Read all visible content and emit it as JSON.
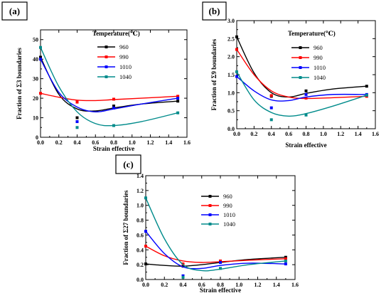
{
  "chart_data": [
    {
      "type": "scatter",
      "panel_label": "(a)",
      "xlabel": "Strain effective",
      "ylabel": "Fraction of Σ3 boundaries",
      "xlim": [
        0.0,
        1.6
      ],
      "ylim": [
        0,
        55
      ],
      "xticks": [
        0.0,
        0.2,
        0.4,
        0.6,
        0.8,
        1.0,
        1.2,
        1.4,
        1.6
      ],
      "yticks": [
        0,
        10,
        20,
        30,
        40,
        50
      ],
      "legend": {
        "title": "Temperature(℃)",
        "position": "top-right"
      },
      "series": [
        {
          "name": "960",
          "color": "#000000",
          "points": [
            [
              0.0,
              41.0
            ],
            [
              0.4,
              10.0
            ],
            [
              0.8,
              16.0
            ],
            [
              1.5,
              18.5
            ]
          ],
          "fit": [
            [
              0.0,
              41.0
            ],
            [
              0.2,
              22.0
            ],
            [
              0.4,
              14.5
            ],
            [
              0.6,
              13.5
            ],
            [
              0.8,
              15.0
            ],
            [
              1.1,
              17.0
            ],
            [
              1.5,
              18.5
            ]
          ]
        },
        {
          "name": "990",
          "color": "#ff0000",
          "points": [
            [
              0.0,
              22.5
            ],
            [
              0.4,
              18.0
            ],
            [
              0.8,
              19.5
            ],
            [
              1.5,
              21.0
            ]
          ],
          "fit": [
            [
              0.0,
              22.5
            ],
            [
              0.2,
              20.5
            ],
            [
              0.4,
              19.0
            ],
            [
              0.6,
              18.8
            ],
            [
              0.8,
              19.3
            ],
            [
              1.1,
              20.0
            ],
            [
              1.5,
              21.0
            ]
          ]
        },
        {
          "name": "1010",
          "color": "#0000ff",
          "points": [
            [
              0.0,
              40.0
            ],
            [
              0.4,
              8.0
            ],
            [
              0.8,
              15.0
            ],
            [
              1.5,
              20.0
            ]
          ],
          "fit": [
            [
              0.0,
              40.0
            ],
            [
              0.2,
              23.0
            ],
            [
              0.4,
              15.5
            ],
            [
              0.6,
              13.0
            ],
            [
              0.8,
              14.5
            ],
            [
              1.1,
              17.0
            ],
            [
              1.5,
              20.0
            ]
          ]
        },
        {
          "name": "1040",
          "color": "#008b8b",
          "points": [
            [
              0.0,
              46.0
            ],
            [
              0.4,
              5.0
            ],
            [
              0.8,
              6.0
            ],
            [
              1.5,
              12.5
            ]
          ],
          "fit": [
            [
              0.0,
              46.0
            ],
            [
              0.2,
              26.0
            ],
            [
              0.4,
              13.0
            ],
            [
              0.6,
              7.0
            ],
            [
              0.8,
              6.0
            ],
            [
              1.1,
              8.0
            ],
            [
              1.5,
              12.5
            ]
          ]
        }
      ]
    },
    {
      "type": "scatter",
      "panel_label": "(b)",
      "xlabel": "Strain effective",
      "ylabel": "Fraction of Σ9 boundaries",
      "xlim": [
        0.0,
        1.6
      ],
      "ylim": [
        0.0,
        3.0
      ],
      "xticks": [
        0.0,
        0.2,
        0.4,
        0.6,
        0.8,
        1.0,
        1.2,
        1.4,
        1.6
      ],
      "yticks": [
        0.0,
        0.5,
        1.0,
        1.5,
        2.0,
        2.5,
        3.0
      ],
      "legend": {
        "title": "Temperature(℃)",
        "position": "top-right"
      },
      "series": [
        {
          "name": "960",
          "color": "#000000",
          "points": [
            [
              0.0,
              2.55
            ],
            [
              0.4,
              0.9
            ],
            [
              0.8,
              1.05
            ],
            [
              1.5,
              1.18
            ]
          ],
          "fit": [
            [
              0.0,
              2.55
            ],
            [
              0.2,
              1.55
            ],
            [
              0.4,
              1.0
            ],
            [
              0.6,
              0.88
            ],
            [
              0.8,
              0.98
            ],
            [
              1.1,
              1.1
            ],
            [
              1.5,
              1.18
            ]
          ]
        },
        {
          "name": "990",
          "color": "#ff0000",
          "points": [
            [
              0.0,
              2.2
            ],
            [
              0.4,
              0.92
            ],
            [
              0.8,
              0.85
            ],
            [
              1.5,
              0.9
            ]
          ],
          "fit": [
            [
              0.0,
              2.2
            ],
            [
              0.2,
              1.5
            ],
            [
              0.4,
              1.05
            ],
            [
              0.6,
              0.88
            ],
            [
              0.8,
              0.84
            ],
            [
              1.1,
              0.86
            ],
            [
              1.5,
              0.9
            ]
          ]
        },
        {
          "name": "1010",
          "color": "#0000ff",
          "points": [
            [
              0.0,
              1.45
            ],
            [
              0.4,
              0.58
            ],
            [
              0.8,
              0.95
            ],
            [
              1.5,
              0.95
            ]
          ],
          "fit": [
            [
              0.0,
              1.45
            ],
            [
              0.2,
              1.05
            ],
            [
              0.4,
              0.8
            ],
            [
              0.6,
              0.78
            ],
            [
              0.8,
              0.88
            ],
            [
              1.1,
              0.95
            ],
            [
              1.5,
              0.95
            ]
          ]
        },
        {
          "name": "1040",
          "color": "#008b8b",
          "points": [
            [
              0.0,
              1.58
            ],
            [
              0.4,
              0.25
            ],
            [
              0.8,
              0.38
            ],
            [
              1.5,
              0.93
            ]
          ],
          "fit": [
            [
              0.0,
              1.58
            ],
            [
              0.2,
              0.8
            ],
            [
              0.4,
              0.45
            ],
            [
              0.6,
              0.35
            ],
            [
              0.8,
              0.42
            ],
            [
              1.1,
              0.62
            ],
            [
              1.5,
              0.93
            ]
          ]
        }
      ]
    },
    {
      "type": "scatter",
      "panel_label": "(c)",
      "xlabel": "Strain effective",
      "ylabel": "Fraction of Σ27 boundaries",
      "xlim": [
        0.0,
        1.6
      ],
      "ylim": [
        0.0,
        1.4
      ],
      "xticks": [
        0.0,
        0.2,
        0.4,
        0.6,
        0.8,
        1.0,
        1.2,
        1.4,
        1.6
      ],
      "yticks": [
        0.0,
        0.2,
        0.4,
        0.6,
        0.8,
        1.0,
        1.2,
        1.4
      ],
      "legend": {
        "title": "",
        "position": "top-right"
      },
      "series": [
        {
          "name": "960",
          "color": "#000000",
          "points": [
            [
              0.0,
              0.21
            ],
            [
              0.4,
              0.18
            ],
            [
              0.8,
              0.24
            ],
            [
              1.5,
              0.3
            ]
          ],
          "fit": [
            [
              0.0,
              0.21
            ],
            [
              0.2,
              0.19
            ],
            [
              0.4,
              0.18
            ],
            [
              0.6,
              0.2
            ],
            [
              0.8,
              0.23
            ],
            [
              1.1,
              0.27
            ],
            [
              1.5,
              0.3
            ]
          ]
        },
        {
          "name": "990",
          "color": "#ff0000",
          "points": [
            [
              0.0,
              0.45
            ],
            [
              0.4,
              0.21
            ],
            [
              0.8,
              0.25
            ],
            [
              1.5,
              0.28
            ]
          ],
          "fit": [
            [
              0.0,
              0.45
            ],
            [
              0.2,
              0.32
            ],
            [
              0.4,
              0.25
            ],
            [
              0.6,
              0.23
            ],
            [
              0.8,
              0.24
            ],
            [
              1.1,
              0.26
            ],
            [
              1.5,
              0.28
            ]
          ]
        },
        {
          "name": "1010",
          "color": "#0000ff",
          "points": [
            [
              0.0,
              0.65
            ],
            [
              0.4,
              0.05
            ],
            [
              0.8,
              0.23
            ],
            [
              1.5,
              0.21
            ]
          ],
          "fit": [
            [
              0.0,
              0.65
            ],
            [
              0.2,
              0.35
            ],
            [
              0.4,
              0.17
            ],
            [
              0.6,
              0.15
            ],
            [
              0.8,
              0.19
            ],
            [
              1.1,
              0.22
            ],
            [
              1.5,
              0.21
            ]
          ]
        },
        {
          "name": "1040",
          "color": "#008b8b",
          "points": [
            [
              0.0,
              1.1
            ],
            [
              0.4,
              0.03
            ],
            [
              0.8,
              0.15
            ],
            [
              1.5,
              0.25
            ]
          ],
          "fit": [
            [
              0.0,
              1.1
            ],
            [
              0.2,
              0.55
            ],
            [
              0.4,
              0.2
            ],
            [
              0.6,
              0.12
            ],
            [
              0.8,
              0.14
            ],
            [
              1.1,
              0.2
            ],
            [
              1.5,
              0.25
            ]
          ]
        }
      ]
    }
  ]
}
